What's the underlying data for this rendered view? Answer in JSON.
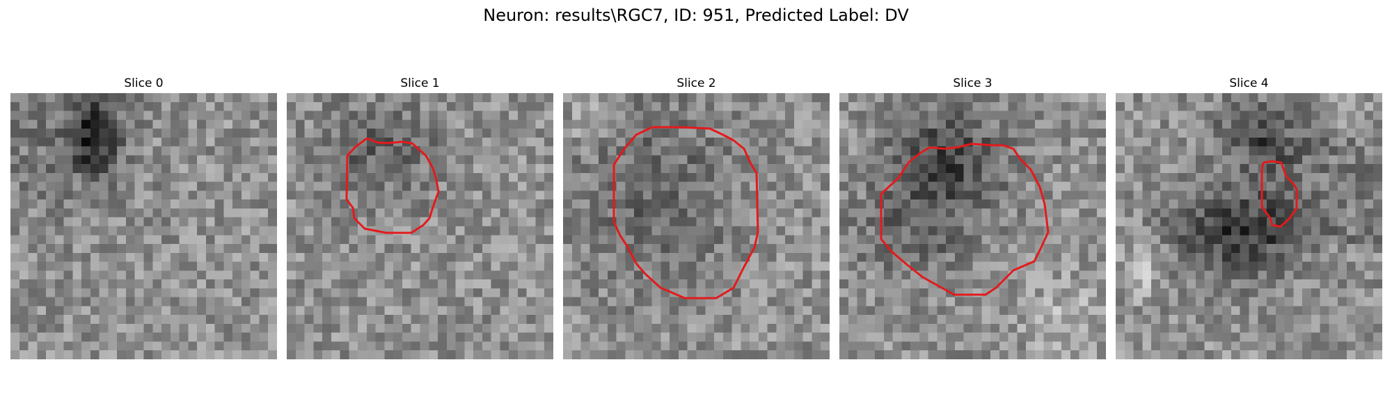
{
  "figure": {
    "title": "Neuron: results\\RGC7, ID: 951, Predicted Label: DV"
  },
  "colors": {
    "contour": "#e31a1c",
    "background": "#ffffff"
  },
  "panels": [
    {
      "title": "Slice 0",
      "has_contour": false
    },
    {
      "title": "Slice 1",
      "has_contour": true
    },
    {
      "title": "Slice 2",
      "has_contour": true
    },
    {
      "title": "Slice 3",
      "has_contour": true
    },
    {
      "title": "Slice 4",
      "has_contour": true
    }
  ]
}
